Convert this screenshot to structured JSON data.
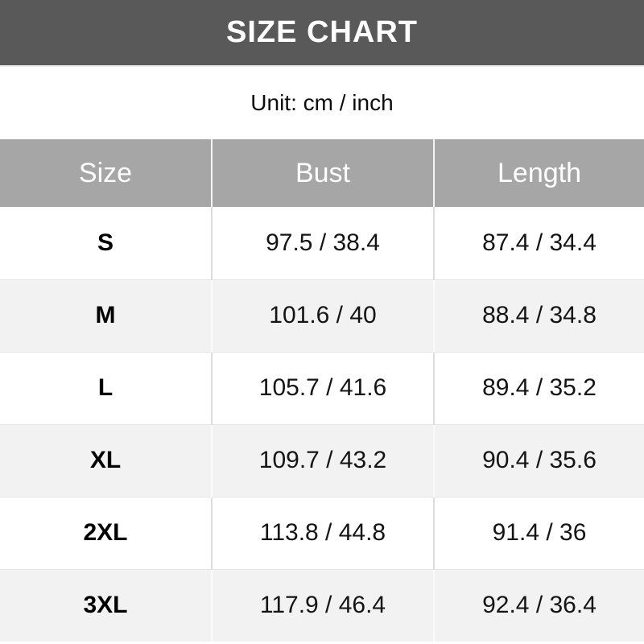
{
  "colors": {
    "title_bar_bg": "#595959",
    "title_text": "#ffffff",
    "header_row_bg": "#a6a6a6",
    "header_text": "#ffffff",
    "row_bg": "#ffffff",
    "alt_row_bg": "#f2f2f2",
    "divider": "#dcdcdc",
    "body_text": "#141414"
  },
  "chart_data": {
    "type": "table",
    "title": "SIZE CHART",
    "subtitle": "Unit: cm / inch",
    "columns": [
      "Size",
      "Bust",
      "Length"
    ],
    "rows": [
      [
        "S",
        "97.5 / 38.4",
        "87.4 / 34.4"
      ],
      [
        "M",
        "101.6 / 40",
        "88.4 / 34.8"
      ],
      [
        "L",
        "105.7 / 41.6",
        "89.4 / 35.2"
      ],
      [
        "XL",
        "109.7 / 43.2",
        "90.4 / 35.6"
      ],
      [
        "2XL",
        "113.8 / 44.8",
        "91.4 / 36"
      ],
      [
        "3XL",
        "117.9 / 46.4",
        "92.4 / 36.4"
      ]
    ]
  }
}
